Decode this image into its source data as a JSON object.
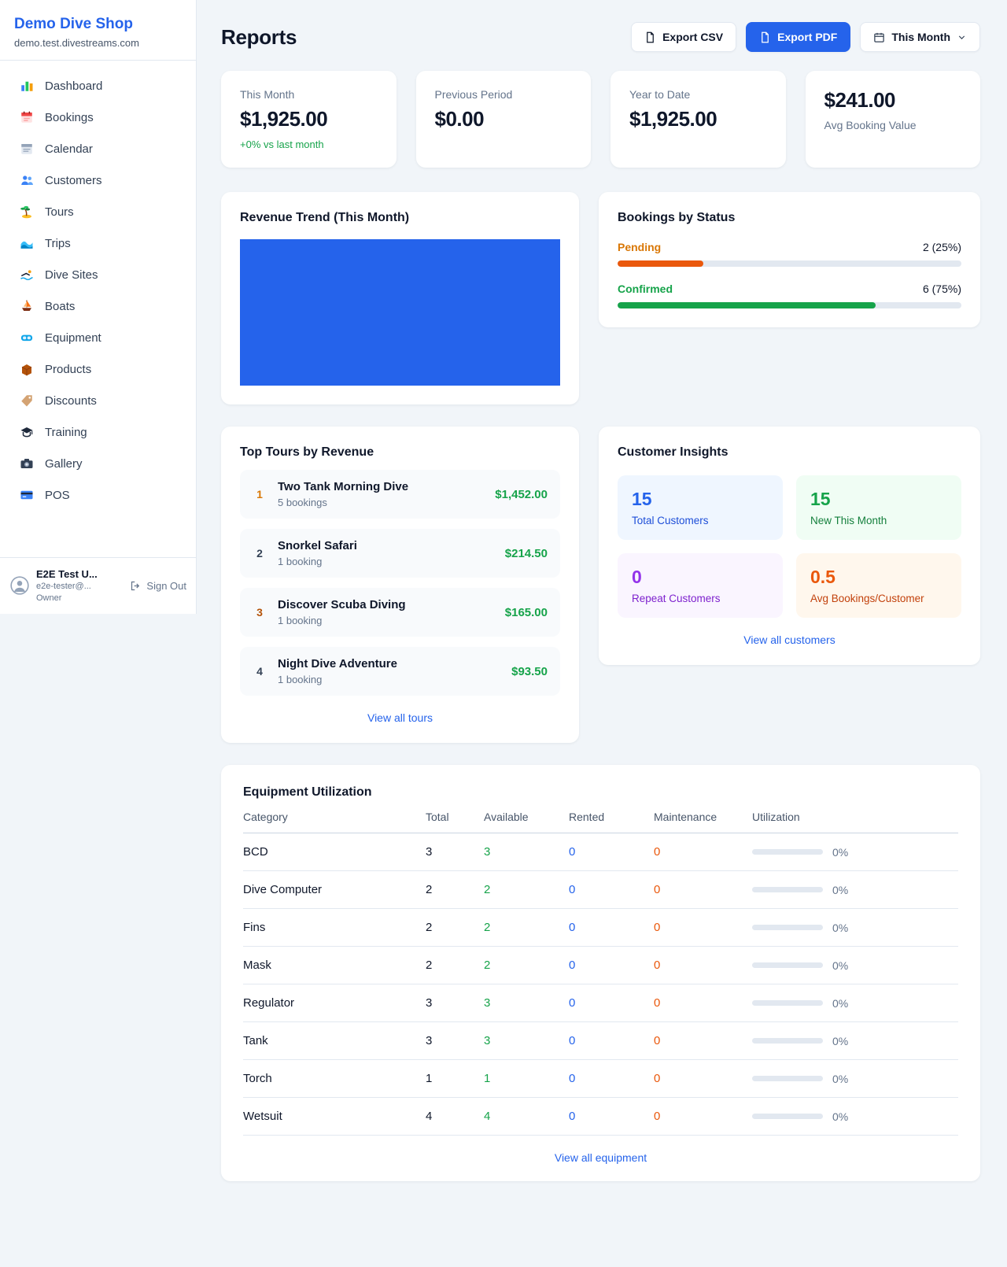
{
  "colors": {
    "accent": "#2563eb",
    "green": "#16a34a",
    "orange": "#ea580c",
    "purple": "#9333ea"
  },
  "sidebar": {
    "title": "Demo Dive Shop",
    "subtitle": "demo.test.divestreams.com",
    "items": [
      {
        "label": "Dashboard",
        "icon": "dashboard-icon"
      },
      {
        "label": "Bookings",
        "icon": "bookings-calendar-icon"
      },
      {
        "label": "Calendar",
        "icon": "calendar-icon"
      },
      {
        "label": "Customers",
        "icon": "customers-icon"
      },
      {
        "label": "Tours",
        "icon": "palm-island-icon"
      },
      {
        "label": "Trips",
        "icon": "wave-icon"
      },
      {
        "label": "Dive Sites",
        "icon": "swimmer-icon"
      },
      {
        "label": "Boats",
        "icon": "sailboat-icon"
      },
      {
        "label": "Equipment",
        "icon": "dive-mask-icon"
      },
      {
        "label": "Products",
        "icon": "box-icon"
      },
      {
        "label": "Discounts",
        "icon": "tag-icon"
      },
      {
        "label": "Training",
        "icon": "graduation-cap-icon"
      },
      {
        "label": "Gallery",
        "icon": "camera-icon"
      },
      {
        "label": "POS",
        "icon": "credit-card-icon"
      }
    ],
    "user": {
      "name": "E2E Test U...",
      "email": "e2e-tester@...",
      "role": "Owner",
      "sign_out": "Sign Out"
    }
  },
  "header": {
    "title": "Reports",
    "export_csv_label": "Export CSV",
    "export_pdf_label": "Export PDF",
    "period_label": "This Month"
  },
  "stats": [
    {
      "label": "This Month",
      "value": "$1,925.00",
      "sub": "+0% vs last month"
    },
    {
      "label": "Previous Period",
      "value": "$0.00"
    },
    {
      "label": "Year to Date",
      "value": "$1,925.00"
    },
    {
      "label": "Avg Booking Value",
      "value": "$241.00"
    }
  ],
  "revenue_trend": {
    "title": "Revenue Trend (This Month)",
    "chart_data": {
      "type": "bar",
      "categories": [
        "This Month"
      ],
      "values": [
        1925
      ],
      "color": "#2563eb",
      "note": "single bar filling the entire plot area"
    }
  },
  "bookings_by_status": {
    "title": "Bookings by Status",
    "rows": [
      {
        "label": "Pending",
        "value": "2 (25%)",
        "pct": 25
      },
      {
        "label": "Confirmed",
        "value": "6 (75%)",
        "pct": 75
      }
    ]
  },
  "top_tours": {
    "title": "Top Tours by Revenue",
    "items": [
      {
        "rank": "1",
        "name": "Two Tank Morning Dive",
        "bookings": "5 bookings",
        "revenue": "$1,452.00"
      },
      {
        "rank": "2",
        "name": "Snorkel Safari",
        "bookings": "1 booking",
        "revenue": "$214.50"
      },
      {
        "rank": "3",
        "name": "Discover Scuba Diving",
        "bookings": "1 booking",
        "revenue": "$165.00"
      },
      {
        "rank": "4",
        "name": "Night Dive Adventure",
        "bookings": "1 booking",
        "revenue": "$93.50"
      }
    ],
    "view_all": "View all tours"
  },
  "customer_insights": {
    "title": "Customer Insights",
    "tiles": [
      {
        "value": "15",
        "label": "Total Customers"
      },
      {
        "value": "15",
        "label": "New This Month"
      },
      {
        "value": "0",
        "label": "Repeat Customers"
      },
      {
        "value": "0.5",
        "label": "Avg Bookings/Customer"
      }
    ],
    "view_all": "View all customers"
  },
  "equipment": {
    "title": "Equipment Utilization",
    "headers": [
      "Category",
      "Total",
      "Available",
      "Rented",
      "Maintenance",
      "Utilization"
    ],
    "rows": [
      {
        "category": "BCD",
        "total": "3",
        "available": "3",
        "rented": "0",
        "maintenance": "0",
        "utilization": "0%",
        "pct": 0
      },
      {
        "category": "Dive Computer",
        "total": "2",
        "available": "2",
        "rented": "0",
        "maintenance": "0",
        "utilization": "0%",
        "pct": 0
      },
      {
        "category": "Fins",
        "total": "2",
        "available": "2",
        "rented": "0",
        "maintenance": "0",
        "utilization": "0%",
        "pct": 0
      },
      {
        "category": "Mask",
        "total": "2",
        "available": "2",
        "rented": "0",
        "maintenance": "0",
        "utilization": "0%",
        "pct": 0
      },
      {
        "category": "Regulator",
        "total": "3",
        "available": "3",
        "rented": "0",
        "maintenance": "0",
        "utilization": "0%",
        "pct": 0
      },
      {
        "category": "Tank",
        "total": "3",
        "available": "3",
        "rented": "0",
        "maintenance": "0",
        "utilization": "0%",
        "pct": 0
      },
      {
        "category": "Torch",
        "total": "1",
        "available": "1",
        "rented": "0",
        "maintenance": "0",
        "utilization": "0%",
        "pct": 0
      },
      {
        "category": "Wetsuit",
        "total": "4",
        "available": "4",
        "rented": "0",
        "maintenance": "0",
        "utilization": "0%",
        "pct": 0
      }
    ],
    "view_all": "View all equipment"
  }
}
